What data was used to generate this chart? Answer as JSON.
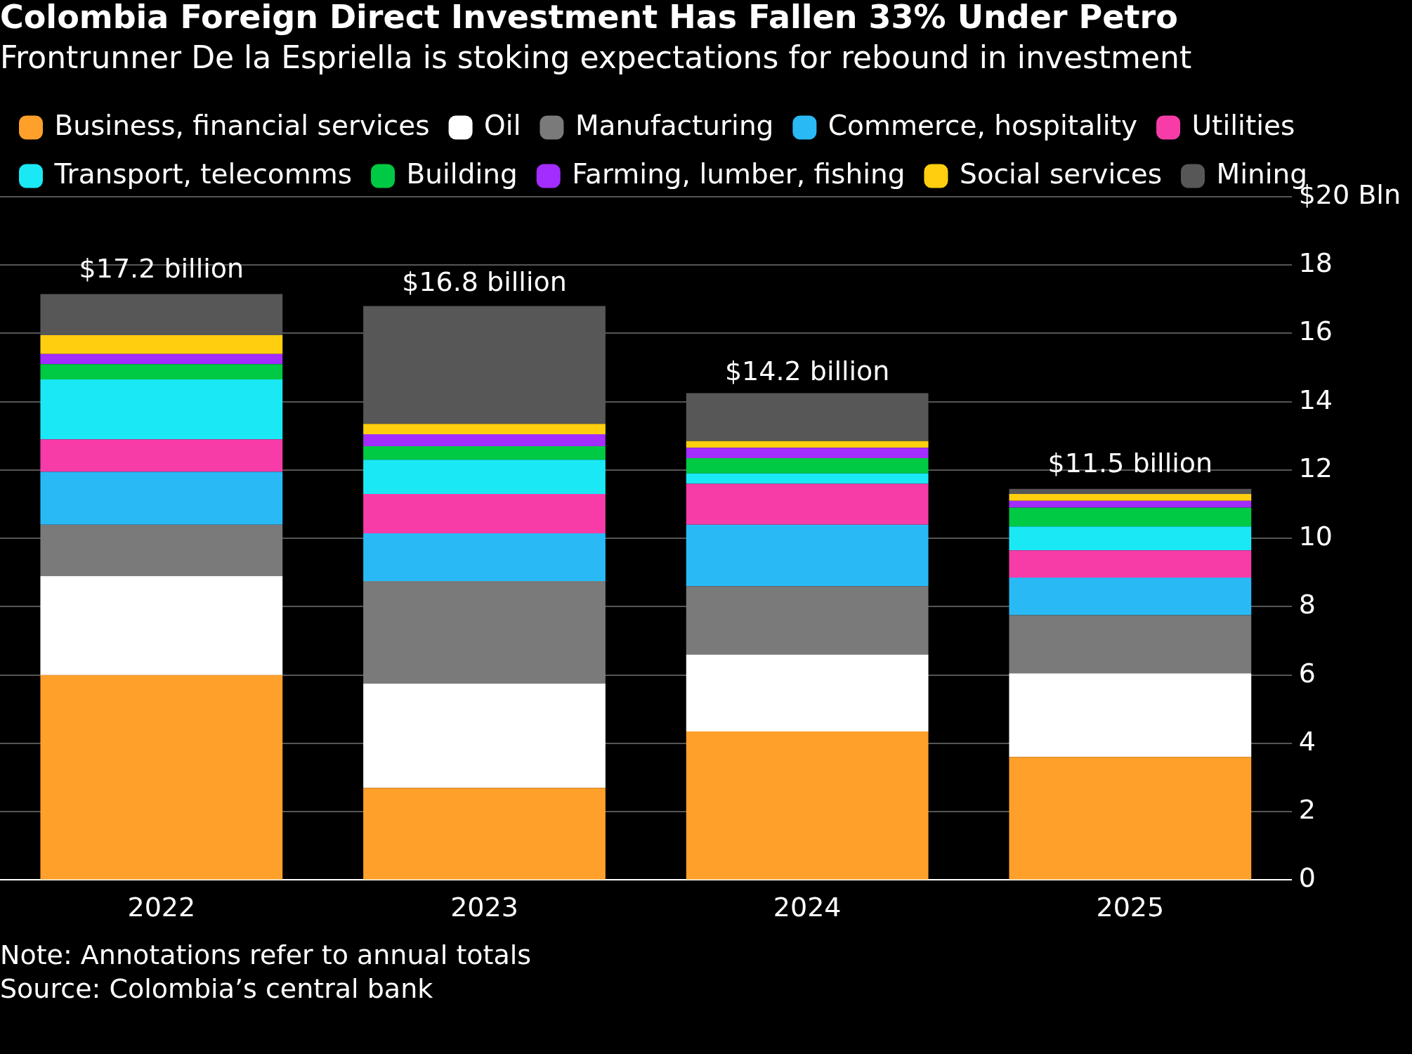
{
  "chart_data": {
    "type": "bar",
    "title": "Colombia Foreign Direct Investment Has Fallen 33% Under Petro",
    "subtitle": "Frontrunner De la Espriella is stoking expectations for rebound in investment",
    "categories": [
      "2022",
      "2023",
      "2024",
      "2025"
    ],
    "stacked": true,
    "series": [
      {
        "name": "Business, financial services",
        "color": "#ffa02b",
        "values": [
          6.0,
          2.7,
          4.35,
          3.6
        ]
      },
      {
        "name": "Oil",
        "color": "#ffffff",
        "values": [
          2.9,
          3.05,
          2.25,
          2.45
        ]
      },
      {
        "name": "Manufacturing",
        "color": "#7a7a7a",
        "values": [
          1.5,
          3.0,
          2.0,
          1.7
        ]
      },
      {
        "name": "Commerce, hospitality",
        "color": "#29baf6",
        "values": [
          1.55,
          1.4,
          1.8,
          1.1
        ]
      },
      {
        "name": "Utilities",
        "color": "#f73ca8",
        "values": [
          0.95,
          1.15,
          1.2,
          0.8
        ]
      },
      {
        "name": "Transport, telecomms",
        "color": "#1be8f5",
        "values": [
          1.75,
          1.0,
          0.3,
          0.7
        ]
      },
      {
        "name": "Building",
        "color": "#00c943",
        "values": [
          0.45,
          0.4,
          0.45,
          0.55
        ]
      },
      {
        "name": "Farming, lumber, fishing",
        "color": "#a32cff",
        "values": [
          0.3,
          0.35,
          0.3,
          0.2
        ]
      },
      {
        "name": "Social services",
        "color": "#ffcf0f",
        "values": [
          0.55,
          0.3,
          0.2,
          0.2
        ]
      },
      {
        "name": "Mining",
        "color": "#575757",
        "values": [
          1.2,
          3.45,
          1.4,
          0.15
        ]
      }
    ],
    "ylim": [
      0,
      20
    ],
    "yticks": [
      0,
      2,
      4,
      6,
      8,
      10,
      12,
      14,
      16,
      18,
      {
        "value": 20,
        "label": "$20 Bln"
      }
    ],
    "grid": "y",
    "legend": "top",
    "annotations": [
      {
        "text": "$17.2 billion",
        "x": "2022",
        "y": 17.2
      },
      {
        "text": "$16.8 billion",
        "x": "2023",
        "y": 16.8
      },
      {
        "text": "$14.2 billion",
        "x": "2024",
        "y": 14.2
      },
      {
        "text": "$11.5 billion",
        "x": "2025",
        "y": 11.5
      },
      "Note: Annotations refer to annual totals",
      "Source: Colombia’s central bank"
    ]
  }
}
